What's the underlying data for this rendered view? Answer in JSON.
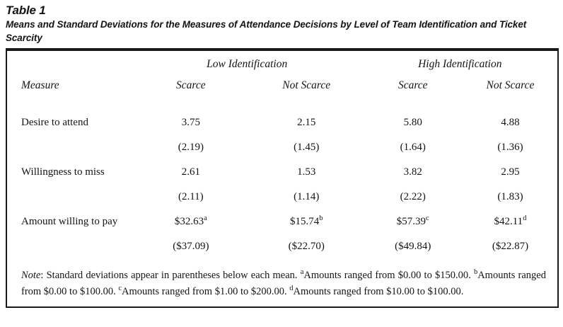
{
  "page": {
    "title": "Table 1",
    "subtitle": "Means and Standard Deviations for the Measures of Attendance Decisions by Level of Team Identification and Ticket Scarcity"
  },
  "table": {
    "spanners": [
      "Low Identification",
      "High Identification"
    ],
    "columns": [
      "Measure",
      "Scarce",
      "Not Scarce",
      "Scarce",
      "Not Scarce"
    ],
    "rows": [
      {
        "measure": "Desire to attend",
        "means": [
          "3.75",
          "2.15",
          "5.80",
          "4.88"
        ],
        "sds": [
          "(2.19)",
          "(1.45)",
          "(1.64)",
          "(1.36)"
        ]
      },
      {
        "measure": "Willingness to miss",
        "means": [
          "2.61",
          "1.53",
          "3.82",
          "2.95"
        ],
        "sds": [
          "(2.11)",
          "(1.14)",
          "(2.22)",
          "(1.83)"
        ]
      },
      {
        "measure": "Amount willing to pay",
        "means": [
          "$32.63",
          "$15.74",
          "$57.39",
          "$42.11"
        ],
        "sups": [
          "a",
          "b",
          "c",
          "d"
        ],
        "sds": [
          "($37.09)",
          "($22.70)",
          "($49.84)",
          "($22.87)"
        ]
      }
    ]
  },
  "note": {
    "label": "Note",
    "intro": ": Standard deviations appear in parentheses below each mean. ",
    "items": [
      {
        "sup": "a",
        "text": "Amounts ranged from $0.00 to $150.00. "
      },
      {
        "sup": "b",
        "text": "Amounts ranged from $0.00 to $100.00. "
      },
      {
        "sup": "c",
        "text": "Amounts ranged from $1.00 to $200.00. "
      },
      {
        "sup": "d",
        "text": "Amounts ranged from $10.00 to $100.00."
      }
    ]
  },
  "colors": {
    "text": "#141414",
    "border": "#1a1a1a",
    "background": "#ffffff"
  }
}
